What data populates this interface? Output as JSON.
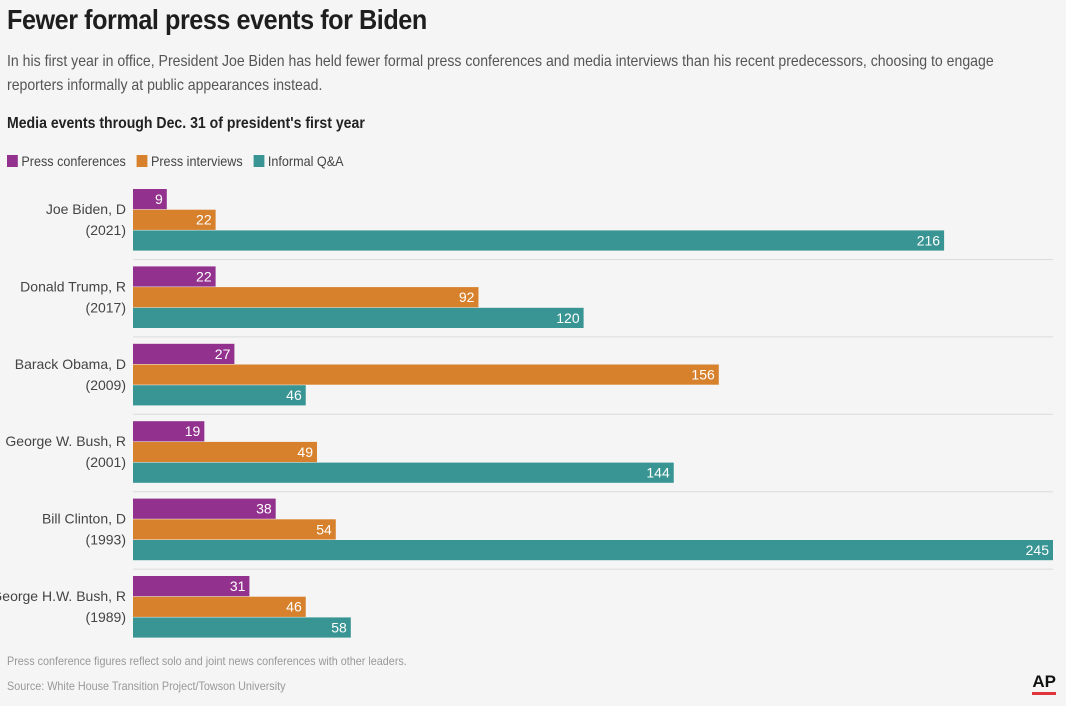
{
  "title": "Fewer formal press events for Biden",
  "subtitle": "In his first year in office, President Joe Biden has held fewer formal press conferences and media interviews than his recent predecessors, choosing to engage reporters informally at public appearances instead.",
  "footnote": "Press conference figures reflect solo and joint news conferences with other leaders.",
  "source": "Source: White House Transition Project/Towson University",
  "logo": "AP",
  "colors": {
    "press_conferences": "#93328e",
    "press_interviews": "#d8812d",
    "informal_qa": "#389593"
  },
  "chart_data": {
    "type": "bar",
    "orientation": "horizontal",
    "title": "Media events through Dec. 31 of president's first year",
    "categories": [
      [
        "Joe Biden, D",
        "(2021)"
      ],
      [
        "Donald Trump, R",
        "(2017)"
      ],
      [
        "Barack Obama, D",
        "(2009)"
      ],
      [
        "George W. Bush, R",
        "(2001)"
      ],
      [
        "Bill Clinton, D",
        "(1993)"
      ],
      [
        "George H.W. Bush, R",
        "(1989)"
      ]
    ],
    "series": [
      {
        "name": "Press conferences",
        "color": "#93328e",
        "values": [
          9,
          22,
          27,
          19,
          38,
          31
        ]
      },
      {
        "name": "Press interviews",
        "color": "#d8812d",
        "values": [
          22,
          92,
          156,
          49,
          54,
          46
        ]
      },
      {
        "name": "Informal Q&A",
        "color": "#389593",
        "values": [
          216,
          120,
          46,
          144,
          245,
          58
        ]
      }
    ],
    "xlim": [
      0,
      245
    ],
    "legend_position": "top-left",
    "grid": false
  }
}
